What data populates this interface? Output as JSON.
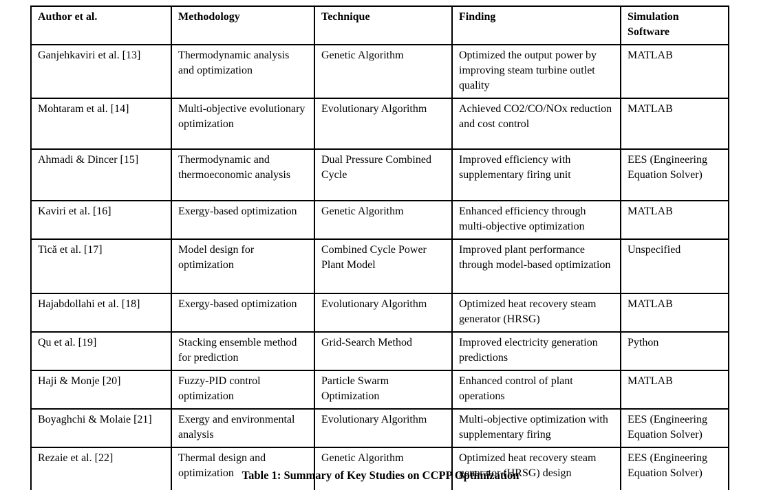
{
  "table": {
    "caption": "Table 1: Summary of Key Studies on CCPP Optimization",
    "columns": [
      "Author et al.",
      "Methodology",
      "Technique",
      "Finding",
      "Simulation Software"
    ],
    "rows": [
      {
        "author": "Ganjehkaviri et al. [13]",
        "methodology": "Thermodynamic analysis and optimization",
        "technique": "Genetic Algorithm",
        "finding": "Optimized the output power by improving steam turbine outlet quality",
        "software": "MATLAB"
      },
      {
        "author": "Mohtaram et al. [14]",
        "methodology": "Multi-objective evolutionary optimization",
        "technique": "Evolutionary Algorithm",
        "finding": "Achieved CO2/CO/NOx reduction and cost control",
        "software": "MATLAB"
      },
      {
        "author": "Ahmadi & Dincer [15]",
        "methodology": "Thermodynamic and thermoeconomic analysis",
        "technique": "Dual Pressure Combined Cycle",
        "finding": "Improved efficiency with supplementary firing unit",
        "software": "EES (Engineering Equation Solver)"
      },
      {
        "author": "Kaviri et al. [16]",
        "methodology": "Exergy-based optimization",
        "technique": "Genetic Algorithm",
        "finding": "Enhanced efficiency through multi-objective optimization",
        "software": "MATLAB"
      },
      {
        "author": "Tică et al. [17]",
        "methodology": "Model design for optimization",
        "technique": "Combined Cycle Power Plant Model",
        "finding": "Improved plant performance through model-based optimization",
        "software": "Unspecified"
      },
      {
        "author": "Hajabdollahi et al. [18]",
        "methodology": "Exergy-based optimization",
        "technique": "Evolutionary Algorithm",
        "finding": "Optimized heat recovery steam generator (HRSG)",
        "software": "MATLAB"
      },
      {
        "author": "Qu et al. [19]",
        "methodology": "Stacking ensemble method for prediction",
        "technique": "Grid-Search Method",
        "finding": "Improved electricity generation predictions",
        "software": "Python"
      },
      {
        "author": "Haji & Monje [20]",
        "methodology": "Fuzzy-PID control optimization",
        "technique": "Particle Swarm Optimization",
        "finding": "Enhanced control of plant operations",
        "software": "MATLAB"
      },
      {
        "author": "Boyaghchi & Molaie [21]",
        "methodology": "Exergy and environmental analysis",
        "technique": "Evolutionary Algorithm",
        "finding": "Multi-objective optimization with supplementary firing",
        "software": "EES (Engineering Equation Solver)"
      },
      {
        "author": "Rezaie et al. [22]",
        "methodology": "Thermal design and optimization",
        "technique": "Genetic Algorithm",
        "finding": "Optimized heat recovery steam generator (HRSG) design",
        "software": "EES (Engineering Equation Solver)"
      }
    ]
  }
}
